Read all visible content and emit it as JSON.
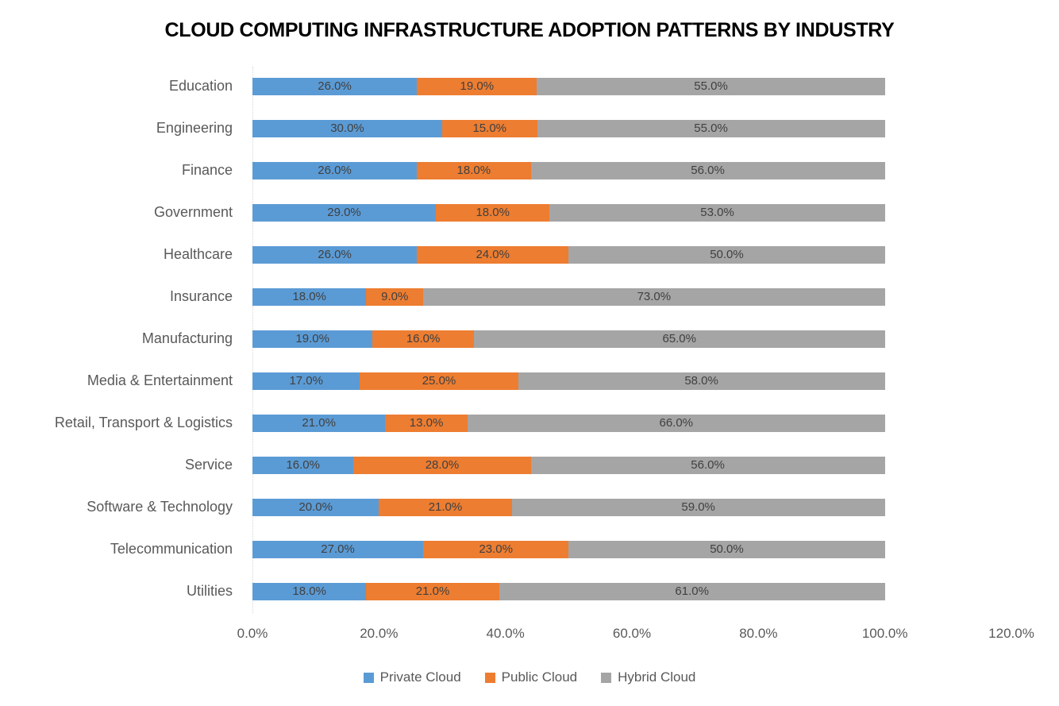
{
  "title": "CLOUD COMPUTING INFRASTRUCTURE ADOPTION PATTERNS BY INDUSTRY",
  "chart_data": {
    "type": "bar",
    "orientation": "horizontal",
    "stacked": true,
    "title": "CLOUD COMPUTING INFRASTRUCTURE ADOPTION PATTERNS BY INDUSTRY",
    "categories": [
      "Education",
      "Engineering",
      "Finance",
      "Government",
      "Healthcare",
      "Insurance",
      "Manufacturing",
      "Media & Entertainment",
      "Retail, Transport & Logistics",
      "Service",
      "Software & Technology",
      "Telecommunication",
      "Utilities"
    ],
    "series": [
      {
        "name": "Private Cloud",
        "color": "#5B9BD5",
        "values": [
          26.0,
          30.0,
          26.0,
          29.0,
          26.0,
          18.0,
          19.0,
          17.0,
          21.0,
          16.0,
          20.0,
          27.0,
          18.0
        ]
      },
      {
        "name": "Public Cloud",
        "color": "#ED7D31",
        "values": [
          19.0,
          15.0,
          18.0,
          18.0,
          24.0,
          9.0,
          16.0,
          25.0,
          13.0,
          28.0,
          21.0,
          23.0,
          21.0
        ]
      },
      {
        "name": "Hybrid Cloud",
        "color": "#A5A5A5",
        "values": [
          55.0,
          55.0,
          56.0,
          53.0,
          50.0,
          73.0,
          65.0,
          58.0,
          66.0,
          56.0,
          59.0,
          50.0,
          61.0
        ]
      }
    ],
    "data_labels": true,
    "data_label_suffix": "%",
    "xlim": [
      0,
      120
    ],
    "x_ticks": [
      "0.0%",
      "20.0%",
      "40.0%",
      "60.0%",
      "80.0%",
      "100.0%",
      "120.0%"
    ],
    "grid": false,
    "legend_position": "bottom"
  },
  "layout_colors": {
    "axis_line": "#d6d6d6",
    "category_text": "#595959",
    "data_label_text": "#404040",
    "tick_text": "#595959",
    "title_text": "#000000"
  }
}
